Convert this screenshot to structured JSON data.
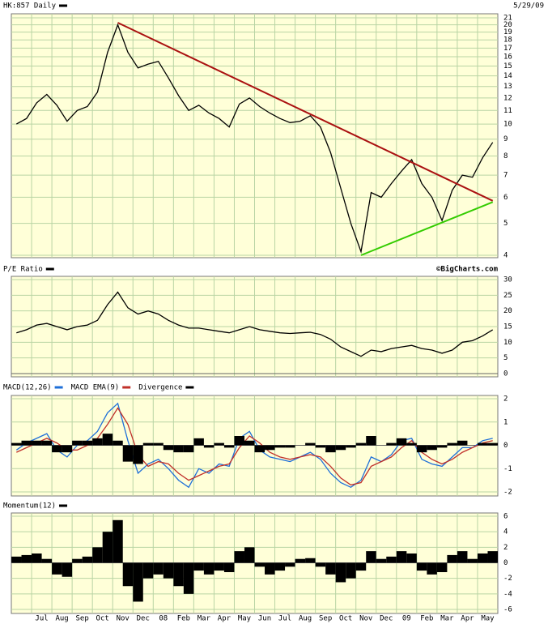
{
  "chart_data": [
    {
      "type": "line",
      "log": true,
      "series": [
        {
          "name": "HK:857 Daily",
          "color": "#000000",
          "values": [
            10,
            10.4,
            11.6,
            12.3,
            11.4,
            10.2,
            11,
            11.3,
            12.5,
            16.5,
            20,
            16.5,
            14.8,
            15.2,
            15.5,
            13.8,
            12.2,
            11,
            11.4,
            10.8,
            10.4,
            9.8,
            11.5,
            12,
            11.3,
            10.8,
            10.4,
            10.1,
            10.2,
            10.6,
            9.8,
            8.2,
            6.4,
            5,
            4.1,
            6.2,
            6,
            6.6,
            7.2,
            7.8,
            6.6,
            6,
            5.1,
            6.3,
            7,
            6.9,
            7.9,
            8.8
          ]
        }
      ],
      "date": "5/29/09",
      "trendlines": [
        {
          "color": "#aa1111",
          "x": [
            10,
            47
          ],
          "y": [
            20.3,
            5.85
          ]
        },
        {
          "color": "#33cc00",
          "x": [
            34,
            47
          ],
          "y": [
            4,
            5.8
          ]
        }
      ],
      "ylim": [
        4,
        21
      ],
      "yticks": [
        4,
        5,
        6,
        7,
        8,
        9,
        10,
        11,
        12,
        13,
        14,
        15,
        16,
        17,
        18,
        19,
        20,
        21
      ],
      "grid": true
    },
    {
      "type": "line",
      "series": [
        {
          "name": "P/E Ratio",
          "color": "#000000",
          "values": [
            13,
            14,
            15.5,
            16,
            15,
            14,
            15,
            15.5,
            17,
            22,
            26,
            21,
            19,
            20,
            19,
            17,
            15.5,
            14.5,
            14.5,
            14,
            13.5,
            13,
            14,
            15,
            14,
            13.5,
            13,
            12.8,
            13,
            13.2,
            12.5,
            11,
            8.5,
            7,
            5.5,
            7.5,
            7,
            8,
            8.5,
            9,
            8,
            7.5,
            6.5,
            7.5,
            10,
            10.5,
            12,
            14
          ]
        }
      ],
      "annotation": "©BigCharts.com",
      "ylim": [
        0,
        30
      ],
      "yticks": [
        0,
        5,
        10,
        15,
        20,
        25,
        30
      ],
      "grid": true
    },
    {
      "type": "line",
      "series": [
        {
          "name": "MACD(12,26)",
          "type": "line",
          "color": "#1e6fd8",
          "values": [
            -0.2,
            0.1,
            0.3,
            0.5,
            -0.2,
            -0.5,
            0,
            0.2,
            0.6,
            1.4,
            1.8,
            0.2,
            -1.2,
            -0.8,
            -0.6,
            -1,
            -1.5,
            -1.8,
            -1,
            -1.2,
            -0.8,
            -0.9,
            0.3,
            0.6,
            -0.2,
            -0.5,
            -0.6,
            -0.7,
            -0.5,
            -0.3,
            -0.6,
            -1.2,
            -1.6,
            -1.8,
            -1.5,
            -0.5,
            -0.7,
            -0.4,
            0.2,
            0.3,
            -0.6,
            -0.8,
            -0.9,
            -0.5,
            -0.1,
            -0.1,
            0.2,
            0.3
          ]
        },
        {
          "name": "MACD EMA(9)",
          "type": "line",
          "color": "#c0302a",
          "values": [
            -0.3,
            -0.1,
            0.1,
            0.3,
            0.1,
            -0.2,
            -0.2,
            0,
            0.3,
            0.9,
            1.6,
            0.9,
            -0.4,
            -0.9,
            -0.7,
            -0.8,
            -1.2,
            -1.5,
            -1.3,
            -1.1,
            -0.9,
            -0.8,
            -0.1,
            0.4,
            0.1,
            -0.3,
            -0.5,
            -0.6,
            -0.5,
            -0.4,
            -0.5,
            -0.9,
            -1.4,
            -1.7,
            -1.6,
            -0.9,
            -0.7,
            -0.5,
            -0.1,
            0.2,
            -0.3,
            -0.6,
            -0.8,
            -0.6,
            -0.3,
            -0.1,
            0.1,
            0.2
          ]
        },
        {
          "name": "Divergence",
          "type": "bar",
          "color": "#000000",
          "values": [
            0.1,
            0.2,
            0.2,
            0.2,
            -0.3,
            -0.3,
            0.2,
            0.2,
            0.3,
            0.5,
            0.2,
            -0.7,
            -0.8,
            0.1,
            0.1,
            -0.2,
            -0.3,
            -0.3,
            0.3,
            -0.1,
            0.1,
            -0.1,
            0.4,
            0.2,
            -0.3,
            -0.2,
            -0.1,
            -0.1,
            0,
            0.1,
            -0.1,
            -0.3,
            -0.2,
            -0.1,
            0.1,
            0.4,
            0,
            0.1,
            0.3,
            0.1,
            -0.3,
            -0.2,
            -0.1,
            0.1,
            0.2,
            0,
            0.1,
            0.1
          ]
        }
      ],
      "ylim": [
        -2,
        2
      ],
      "yticks": [
        -2,
        -1,
        0,
        1,
        2
      ],
      "grid": true
    },
    {
      "type": "bar",
      "series": [
        {
          "name": "Momentum(12)",
          "color": "#000000",
          "values": [
            0.8,
            1,
            1.2,
            0.5,
            -1.5,
            -1.8,
            0.5,
            0.8,
            2,
            4,
            5.5,
            -3,
            -5,
            -2,
            -1.5,
            -2,
            -3,
            -4,
            -1,
            -1.5,
            -1,
            -1.2,
            1.5,
            2,
            -0.5,
            -1.5,
            -1,
            -0.5,
            0.5,
            0.6,
            -0.5,
            -1.5,
            -2.5,
            -2,
            -1,
            1.5,
            0.5,
            0.8,
            1.5,
            1.2,
            -1,
            -1.5,
            -1.2,
            1,
            1.5,
            0.5,
            1.2,
            1.5
          ]
        }
      ],
      "categories": [
        null,
        null,
        "Jul",
        null,
        "Aug",
        null,
        "Sep",
        null,
        "Oct",
        null,
        "Nov",
        null,
        "Dec",
        null,
        "08",
        null,
        "Feb",
        null,
        "Mar",
        null,
        "Apr",
        null,
        "May",
        null,
        "Jun",
        null,
        "Jul",
        null,
        "Aug",
        null,
        "Sep",
        null,
        "Oct",
        null,
        "Nov",
        null,
        "Dec",
        null,
        "09",
        null,
        "Feb",
        null,
        "Mar",
        null,
        "Apr",
        null,
        "May",
        null
      ],
      "ylim": [
        -6,
        6
      ],
      "yticks": [
        -6,
        -4,
        -2,
        0,
        2,
        4,
        6
      ],
      "grid": true
    }
  ]
}
